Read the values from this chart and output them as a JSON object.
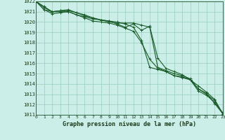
{
  "title": "Graphe pression niveau de la mer (hPa)",
  "hours": [
    0,
    1,
    2,
    3,
    4,
    5,
    6,
    7,
    8,
    9,
    10,
    11,
    12,
    13,
    14,
    15,
    16,
    17,
    18,
    19,
    20,
    21,
    22,
    23
  ],
  "ylim": [
    1011,
    1022
  ],
  "yticks": [
    1011,
    1012,
    1013,
    1014,
    1015,
    1016,
    1017,
    1018,
    1019,
    1020,
    1021,
    1022
  ],
  "background_color": "#cceee8",
  "grid_color": "#99ccbb",
  "line_color": "#1a5c2a",
  "lines": [
    [
      1022.0,
      1021.5,
      1021.0,
      1021.1,
      1021.1,
      1020.9,
      1020.7,
      1020.4,
      1020.2,
      1020.1,
      1019.8,
      1019.5,
      1019.8,
      1019.2,
      1019.6,
      1016.5,
      1015.5,
      1015.2,
      1014.9,
      1014.4,
      1013.8,
      1013.2,
      1012.5,
      1011.1
    ],
    [
      1022.0,
      1021.4,
      1021.0,
      1021.0,
      1021.0,
      1020.7,
      1020.5,
      1020.3,
      1020.2,
      1020.0,
      1019.9,
      1019.9,
      1019.9,
      1019.7,
      1019.5,
      1015.6,
      1015.3,
      1015.0,
      1014.8,
      1014.5,
      1013.5,
      1013.1,
      1012.1,
      1011.1
    ],
    [
      1022.0,
      1021.2,
      1020.8,
      1020.9,
      1021.0,
      1020.7,
      1020.4,
      1020.1,
      1020.0,
      1019.9,
      1019.7,
      1019.4,
      1019.1,
      1018.0,
      1016.4,
      1015.5,
      1015.2,
      1014.8,
      1014.6,
      1014.4,
      1013.3,
      1012.9,
      1012.2,
      1011.2
    ],
    [
      1022.0,
      1021.2,
      1021.0,
      1021.1,
      1021.2,
      1020.9,
      1020.6,
      1020.4,
      1020.2,
      1020.1,
      1020.0,
      1019.8,
      1019.5,
      1018.2,
      1015.6,
      1015.4,
      1015.2,
      1014.8,
      1014.7,
      1014.4,
      1013.5,
      1013.0,
      1012.4,
      1011.1
    ]
  ]
}
